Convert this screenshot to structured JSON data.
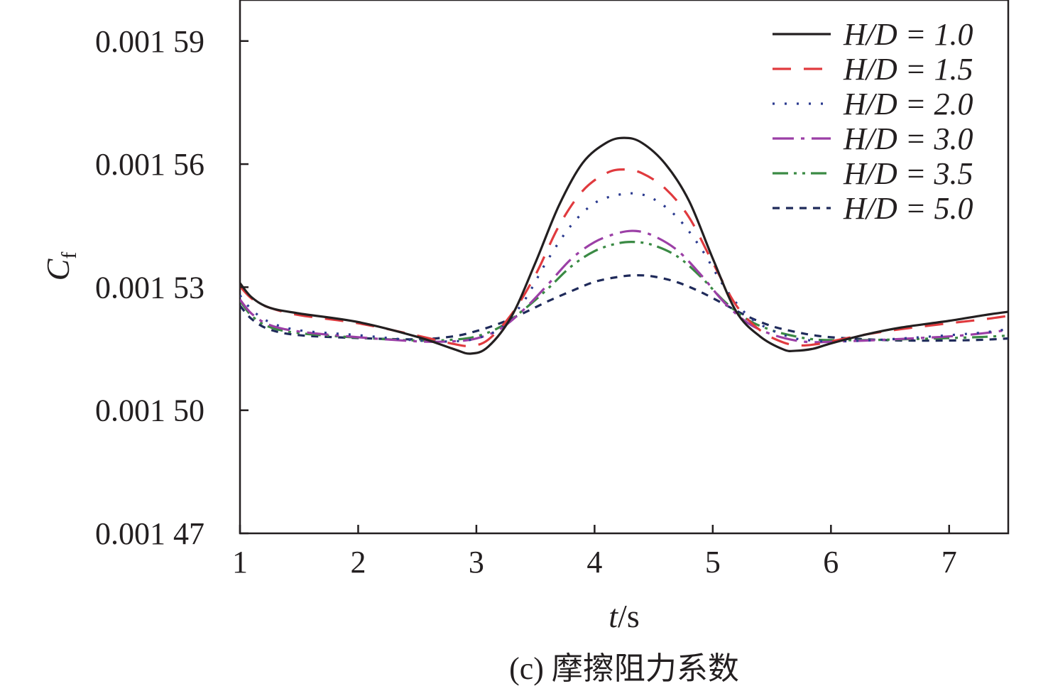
{
  "chart_data": {
    "type": "line",
    "caption": "(c) 摩擦阻力系数",
    "xlabel": "t/s",
    "ylabel": "Cf",
    "xlim": [
      1,
      7.5
    ],
    "ylim": [
      0.00147,
      0.0016
    ],
    "x_ticks": [
      {
        "value": 1,
        "label": "1"
      },
      {
        "value": 2,
        "label": "2"
      },
      {
        "value": 3,
        "label": "3"
      },
      {
        "value": 4,
        "label": "4"
      },
      {
        "value": 5,
        "label": "5"
      },
      {
        "value": 6,
        "label": "6"
      },
      {
        "value": 7,
        "label": "7"
      }
    ],
    "y_ticks": [
      {
        "value": 0.00147,
        "label": "0.001 47"
      },
      {
        "value": 0.0015,
        "label": "0.001 50"
      },
      {
        "value": 0.00153,
        "label": "0.001 53"
      },
      {
        "value": 0.00156,
        "label": "0.001 56"
      },
      {
        "value": 0.00159,
        "label": "0.001 59"
      }
    ],
    "grid": false,
    "legend_position": "top-right",
    "series": [
      {
        "name": "H/D = 1.0",
        "color": "#231f20",
        "dash": "solid",
        "x": [
          1.0,
          1.1,
          1.25,
          1.5,
          2.0,
          2.5,
          2.8,
          2.95,
          3.1,
          3.3,
          3.5,
          3.7,
          3.9,
          4.1,
          4.25,
          4.4,
          4.6,
          4.8,
          5.0,
          5.2,
          5.4,
          5.6,
          5.7,
          5.85,
          6.0,
          6.3,
          6.6,
          7.0,
          7.3,
          7.5
        ],
        "y": [
          0.001531,
          0.0015275,
          0.001525,
          0.0015236,
          0.0015215,
          0.0015179,
          0.001515,
          0.0015138,
          0.0015155,
          0.001523,
          0.001536,
          0.00155,
          0.0015603,
          0.0015652,
          0.0015664,
          0.0015652,
          0.00156,
          0.001551,
          0.001537,
          0.001524,
          0.001518,
          0.0015148,
          0.0015145,
          0.001515,
          0.0015163,
          0.0015185,
          0.0015202,
          0.0015218,
          0.0015232,
          0.001524
        ]
      },
      {
        "name": "H/D = 1.5",
        "color": "#e03a3e",
        "dash": "26 18",
        "x": [
          1.0,
          1.1,
          1.25,
          1.5,
          2.0,
          2.5,
          2.8,
          2.95,
          3.1,
          3.3,
          3.5,
          3.7,
          3.9,
          4.1,
          4.25,
          4.4,
          4.6,
          4.8,
          5.0,
          5.2,
          5.4,
          5.6,
          5.75,
          5.9,
          6.0,
          6.3,
          6.6,
          7.0,
          7.3,
          7.5
        ],
        "y": [
          0.0015302,
          0.0015272,
          0.001525,
          0.0015232,
          0.0015212,
          0.0015182,
          0.0015162,
          0.0015157,
          0.0015172,
          0.0015235,
          0.001533,
          0.001545,
          0.0015535,
          0.0015578,
          0.0015587,
          0.0015578,
          0.001554,
          0.001547,
          0.001536,
          0.0015255,
          0.0015195,
          0.0015165,
          0.0015158,
          0.0015162,
          0.0015168,
          0.0015185,
          0.0015198,
          0.0015212,
          0.0015222,
          0.001523
        ]
      },
      {
        "name": "H/D = 2.0",
        "color": "#2b3a8f",
        "dash": "3 14",
        "x": [
          1.0,
          1.1,
          1.25,
          1.5,
          2.0,
          2.5,
          2.8,
          3.0,
          3.2,
          3.4,
          3.6,
          3.8,
          4.0,
          4.2,
          4.35,
          4.5,
          4.7,
          4.9,
          5.1,
          5.3,
          5.5,
          5.7,
          5.85,
          6.0,
          6.3,
          6.6,
          7.0,
          7.3,
          7.5
        ],
        "y": [
          0.001528,
          0.0015245,
          0.0015215,
          0.0015195,
          0.0015183,
          0.001517,
          0.0015168,
          0.0015175,
          0.00152,
          0.0015265,
          0.0015365,
          0.001545,
          0.0015505,
          0.0015525,
          0.0015528,
          0.0015515,
          0.001547,
          0.0015395,
          0.00153,
          0.001523,
          0.0015195,
          0.0015175,
          0.001517,
          0.0015168,
          0.001517,
          0.0015175,
          0.0015183,
          0.001519,
          0.0015198
        ]
      },
      {
        "name": "H/D = 3.0",
        "color": "#9b3fa6",
        "dash": "30 10 5 10",
        "x": [
          1.0,
          1.1,
          1.25,
          1.5,
          2.0,
          2.5,
          2.8,
          3.0,
          3.2,
          3.4,
          3.6,
          3.8,
          4.0,
          4.2,
          4.35,
          4.5,
          4.7,
          4.9,
          5.1,
          5.3,
          5.5,
          5.7,
          5.85,
          6.0,
          6.3,
          6.6,
          7.0,
          7.3,
          7.5
        ],
        "y": [
          0.001527,
          0.0015235,
          0.0015208,
          0.0015192,
          0.0015178,
          0.0015168,
          0.0015168,
          0.0015175,
          0.0015198,
          0.0015245,
          0.0015305,
          0.0015368,
          0.001541,
          0.0015432,
          0.0015437,
          0.0015425,
          0.001539,
          0.001533,
          0.0015262,
          0.0015212,
          0.0015185,
          0.001517,
          0.0015166,
          0.0015167,
          0.001517,
          0.0015174,
          0.001518,
          0.0015188,
          0.0015196
        ]
      },
      {
        "name": "H/D = 3.5",
        "color": "#3a8a44",
        "dash": "22 8 4 8 4 8",
        "x": [
          1.0,
          1.1,
          1.25,
          1.5,
          2.0,
          2.5,
          2.8,
          3.0,
          3.2,
          3.4,
          3.6,
          3.8,
          4.0,
          4.2,
          4.35,
          4.5,
          4.7,
          4.9,
          5.1,
          5.3,
          5.5,
          5.7,
          5.85,
          6.0,
          6.3,
          6.6,
          7.0,
          7.3,
          7.5
        ],
        "y": [
          0.0015267,
          0.001523,
          0.0015203,
          0.0015188,
          0.0015177,
          0.001517,
          0.0015172,
          0.001518,
          0.0015203,
          0.0015245,
          0.0015295,
          0.001535,
          0.0015388,
          0.0015407,
          0.001541,
          0.0015402,
          0.0015375,
          0.0015325,
          0.0015265,
          0.001522,
          0.0015195,
          0.001518,
          0.0015173,
          0.0015171,
          0.0015171,
          0.0015173,
          0.0015176,
          0.0015179,
          0.0015182
        ]
      },
      {
        "name": "H/D = 5.0",
        "color": "#1f2a5a",
        "dash": "10 9",
        "x": [
          1.0,
          1.1,
          1.25,
          1.5,
          2.0,
          2.5,
          2.8,
          3.0,
          3.2,
          3.4,
          3.6,
          3.8,
          4.0,
          4.2,
          4.35,
          4.5,
          4.7,
          4.9,
          5.1,
          5.3,
          5.5,
          5.7,
          5.85,
          6.0,
          6.3,
          6.6,
          7.0,
          7.3,
          7.5
        ],
        "y": [
          0.0015255,
          0.0015222,
          0.0015197,
          0.0015183,
          0.0015176,
          0.0015173,
          0.001518,
          0.0015193,
          0.0015212,
          0.0015237,
          0.0015265,
          0.001529,
          0.0015313,
          0.0015325,
          0.0015329,
          0.0015326,
          0.0015312,
          0.0015288,
          0.0015258,
          0.0015228,
          0.0015205,
          0.0015191,
          0.0015183,
          0.0015178,
          0.0015173,
          0.001517,
          0.001517,
          0.0015172,
          0.0015175
        ]
      }
    ]
  }
}
